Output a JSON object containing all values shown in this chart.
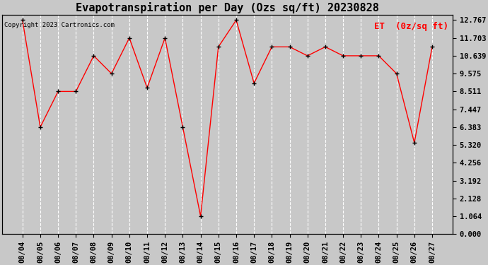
{
  "title": "Evapotranspiration per Day (Ozs sq/ft) 20230828",
  "legend_label": "ET  (0z/sq ft)",
  "copyright": "Copyright 2023 Cartronics.com",
  "dates": [
    "08/04",
    "08/05",
    "08/06",
    "08/07",
    "08/08",
    "08/09",
    "08/10",
    "08/11",
    "08/12",
    "08/13",
    "08/14",
    "08/15",
    "08/16",
    "08/17",
    "08/18",
    "08/19",
    "08/20",
    "08/21",
    "08/22",
    "08/23",
    "08/24",
    "08/25",
    "08/26",
    "08/27"
  ],
  "values": [
    12.767,
    6.383,
    8.511,
    8.511,
    10.639,
    9.575,
    11.703,
    8.72,
    11.703,
    6.383,
    1.064,
    11.17,
    12.767,
    9.0,
    11.17,
    11.17,
    10.639,
    11.17,
    10.639,
    10.639,
    10.639,
    9.575,
    5.45,
    11.17
  ],
  "yticks": [
    0.0,
    1.064,
    2.128,
    3.192,
    4.256,
    5.32,
    6.383,
    7.447,
    8.511,
    9.575,
    10.639,
    11.703,
    12.767
  ],
  "ylim": [
    0.0,
    12.767
  ],
  "line_color": "red",
  "marker_color": "black",
  "bg_color": "#c8c8c8",
  "grid_color": "white",
  "title_fontsize": 11,
  "tick_fontsize": 7.5,
  "legend_color": "red",
  "legend_fontsize": 9,
  "copyright_fontsize": 6.5
}
